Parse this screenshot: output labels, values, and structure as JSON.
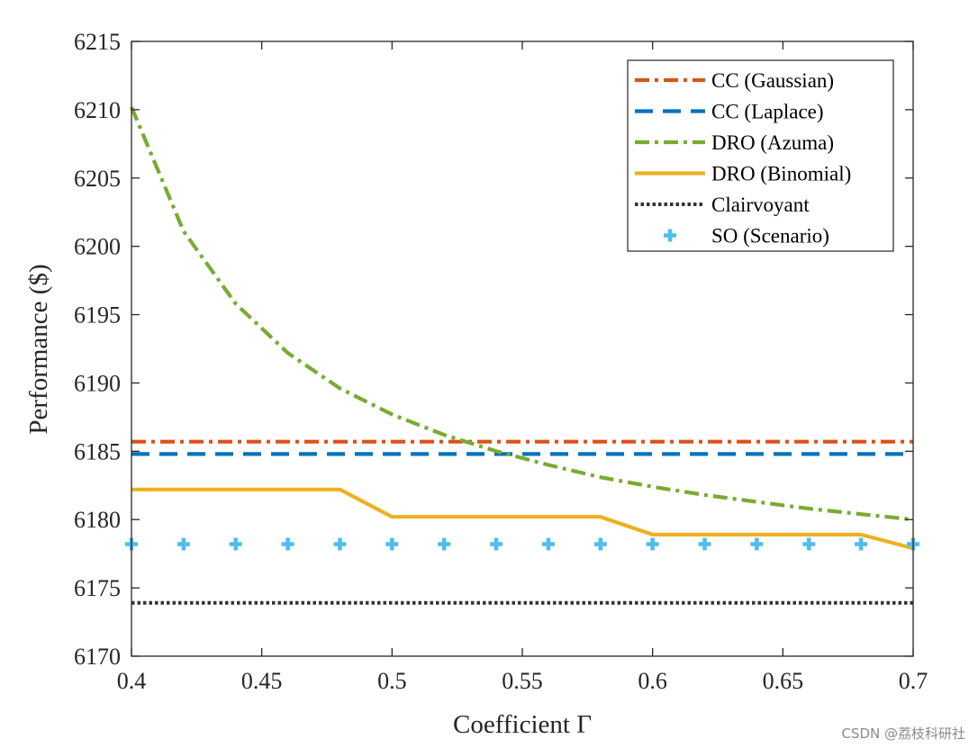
{
  "chart_data": {
    "type": "line",
    "xlabel": "Coefficient Γ",
    "ylabel": "Performance ($)",
    "xlim": [
      0.4,
      0.7
    ],
    "ylim": [
      6170,
      6215
    ],
    "xticks": [
      "0.4",
      "0.45",
      "0.5",
      "0.55",
      "0.6",
      "0.65",
      "0.7"
    ],
    "yticks": [
      "6170",
      "6175",
      "6180",
      "6185",
      "6190",
      "6195",
      "6200",
      "6205",
      "6210",
      "6215"
    ],
    "grid": false,
    "legend_position": "top-right",
    "series": [
      {
        "name": "CC (Gaussian)",
        "color": "#D95319",
        "style": "dash-dot",
        "x": [
          0.4,
          0.7
        ],
        "y": [
          6185.7,
          6185.7
        ]
      },
      {
        "name": "CC (Laplace)",
        "color": "#0072BD",
        "style": "dashed",
        "x": [
          0.4,
          0.7
        ],
        "y": [
          6184.8,
          6184.8
        ]
      },
      {
        "name": "DRO (Azuma)",
        "color": "#77AC30",
        "style": "dash-dot",
        "x": [
          0.4,
          0.42,
          0.44,
          0.46,
          0.48,
          0.5,
          0.52,
          0.54,
          0.56,
          0.58,
          0.6,
          0.62,
          0.64,
          0.66,
          0.68,
          0.7
        ],
        "y": [
          6210.2,
          6201.1,
          6195.8,
          6192.2,
          6189.6,
          6187.7,
          6186.2,
          6185.0,
          6184.0,
          6183.1,
          6182.4,
          6181.8,
          6181.3,
          6180.8,
          6180.4,
          6180.0
        ]
      },
      {
        "name": "DRO (Binomial)",
        "color": "#EDB120",
        "style": "solid",
        "x": [
          0.4,
          0.48,
          0.5,
          0.58,
          0.6,
          0.68,
          0.7
        ],
        "y": [
          6182.2,
          6182.2,
          6180.2,
          6180.2,
          6178.9,
          6178.9,
          6177.9
        ]
      },
      {
        "name": "Clairvoyant",
        "color": "#333333",
        "style": "dotted",
        "x": [
          0.4,
          0.7
        ],
        "y": [
          6173.9,
          6173.9
        ]
      },
      {
        "name": "SO (Scenario)",
        "color": "#4DBEEE",
        "style": "marker-plus",
        "x": [
          0.4,
          0.42,
          0.44,
          0.46,
          0.48,
          0.5,
          0.52,
          0.54,
          0.56,
          0.58,
          0.6,
          0.62,
          0.64,
          0.66,
          0.68,
          0.7
        ],
        "y": [
          6178.2,
          6178.2,
          6178.2,
          6178.2,
          6178.2,
          6178.2,
          6178.2,
          6178.2,
          6178.2,
          6178.2,
          6178.2,
          6178.2,
          6178.2,
          6178.2,
          6178.2,
          6178.2
        ]
      }
    ]
  },
  "watermark": "CSDN @荔枝科研社"
}
